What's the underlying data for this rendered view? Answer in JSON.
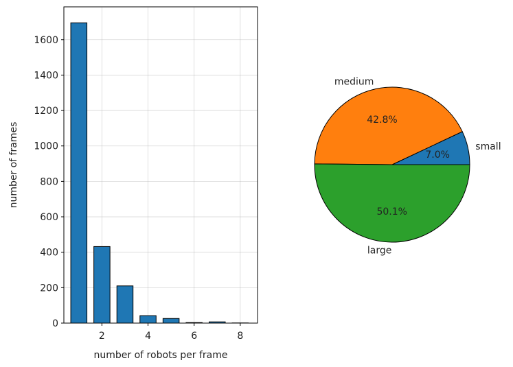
{
  "chart_data": [
    {
      "type": "bar",
      "xlabel": "number of robots per frame",
      "ylabel": "number of frames",
      "x": [
        1,
        2,
        3,
        4,
        5,
        6,
        7,
        8
      ],
      "values": [
        1695,
        432,
        210,
        42,
        26,
        3,
        7,
        1
      ],
      "xlim": [
        0.35,
        8.75
      ],
      "ylim": [
        0,
        1785
      ],
      "xticks": [
        2,
        4,
        6,
        8
      ],
      "yticks": [
        0,
        200,
        400,
        600,
        800,
        1000,
        1200,
        1400,
        1600
      ],
      "grid": true,
      "color": "#1f77b4",
      "edgecolor": "#000000"
    },
    {
      "type": "pie",
      "labels": [
        "small",
        "medium",
        "large"
      ],
      "values": [
        7.0,
        42.8,
        50.1
      ],
      "autopct": [
        "7.0%",
        "42.8%",
        "50.1%"
      ],
      "colors": [
        "#1f77b4",
        "#ff7f0e",
        "#2ca02c"
      ],
      "edgecolor": "#000000"
    }
  ]
}
